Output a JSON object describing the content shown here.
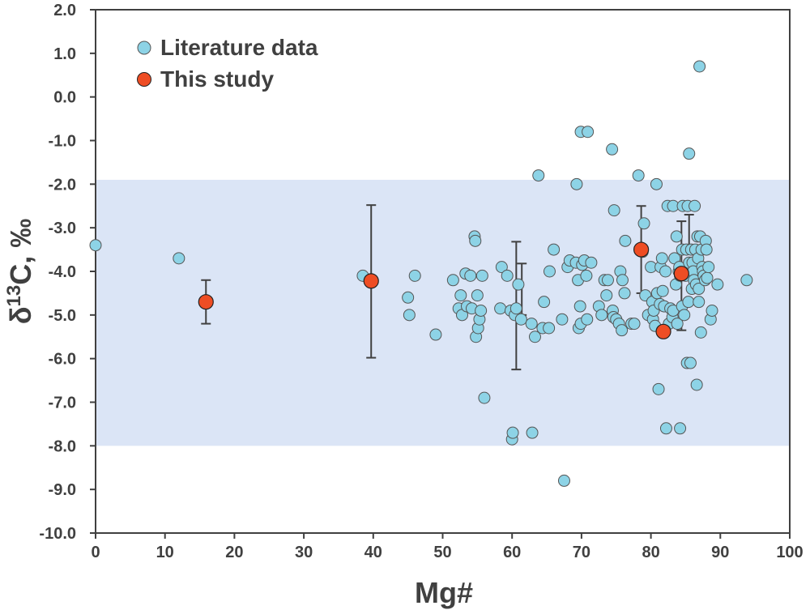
{
  "chart_data": {
    "type": "scatter",
    "xlabel": "Mg#",
    "ylabel": "δ13C, ‰",
    "ylabel_parts": {
      "symbol": "δ",
      "superscript": "13",
      "rest": "C, ‰"
    },
    "xlim": [
      0,
      100
    ],
    "ylim": [
      -10,
      2
    ],
    "x_ticks": [
      0,
      10,
      20,
      30,
      40,
      50,
      60,
      70,
      80,
      90,
      100
    ],
    "x_tick_labels": [
      "0",
      "10",
      "20",
      "30",
      "40",
      "50",
      "60",
      "70",
      "80",
      "90",
      "100"
    ],
    "y_ticks": [
      2,
      1,
      0,
      -1,
      -2,
      -3,
      -4,
      -5,
      -6,
      -7,
      -8,
      -9,
      -10
    ],
    "y_tick_labels": [
      "2.0",
      "1.0",
      "0.0",
      "-1.0",
      "-2.0",
      "-3.0",
      "-4.0",
      "-5.0",
      "-6.0",
      "-7.0",
      "-8.0",
      "-9.0",
      "-10.0"
    ],
    "grid": false,
    "legend_position": "top-left",
    "shaded_band": {
      "y_from": -8.0,
      "y_to": -1.9,
      "color": "#dbe5f6"
    },
    "colors": {
      "literature": "#8dd3e6",
      "this_study": "#ee4d24",
      "marker_edge": "#555555",
      "error_bar": "#404040",
      "frame": "#404040",
      "text": "#404040"
    },
    "series": [
      {
        "name": "Literature data",
        "color": "#8dd3e6",
        "points": [
          [
            0,
            -3.4
          ],
          [
            12,
            -3.7
          ],
          [
            38.5,
            -4.1
          ],
          [
            45,
            -4.6
          ],
          [
            45.2,
            -5.0
          ],
          [
            46,
            -4.1
          ],
          [
            49,
            -5.45
          ],
          [
            51.5,
            -4.2
          ],
          [
            52.3,
            -4.85
          ],
          [
            52.6,
            -4.55
          ],
          [
            52.8,
            -5.0
          ],
          [
            53.3,
            -4.05
          ],
          [
            53.5,
            -4.8
          ],
          [
            54,
            -4.1
          ],
          [
            54.2,
            -4.85
          ],
          [
            54.6,
            -3.2
          ],
          [
            54.7,
            -3.3
          ],
          [
            54.8,
            -5.5
          ],
          [
            55,
            -4.55
          ],
          [
            55.1,
            -5.3
          ],
          [
            55.3,
            -5.1
          ],
          [
            55.5,
            -4.9
          ],
          [
            55.7,
            -4.1
          ],
          [
            56,
            -6.9
          ],
          [
            58.3,
            -4.85
          ],
          [
            58.5,
            -3.9
          ],
          [
            59.3,
            -4.1
          ],
          [
            59.8,
            -4.9
          ],
          [
            60,
            -7.85
          ],
          [
            60.1,
            -7.7
          ],
          [
            60.4,
            -5.0
          ],
          [
            60.6,
            -4.85
          ],
          [
            60.9,
            -4.3
          ],
          [
            61.3,
            -5.1
          ],
          [
            62.8,
            -5.2
          ],
          [
            62.9,
            -7.7
          ],
          [
            63.3,
            -5.5
          ],
          [
            63.8,
            -1.8
          ],
          [
            64.4,
            -5.3
          ],
          [
            64.6,
            -4.7
          ],
          [
            65.3,
            -5.3
          ],
          [
            65.4,
            -4.0
          ],
          [
            66,
            -3.5
          ],
          [
            67.2,
            -5.1
          ],
          [
            67.5,
            -8.8
          ],
          [
            68,
            -3.9
          ],
          [
            68.3,
            -3.75
          ],
          [
            69.2,
            -3.8
          ],
          [
            69.3,
            -2.0
          ],
          [
            69.5,
            -4.2
          ],
          [
            69.6,
            -5.3
          ],
          [
            69.8,
            -4.8
          ],
          [
            69.9,
            -5.2
          ],
          [
            69.9,
            -0.8
          ],
          [
            70.1,
            -3.85
          ],
          [
            70.4,
            -3.75
          ],
          [
            70.7,
            -4.1
          ],
          [
            70.8,
            -5.1
          ],
          [
            70.9,
            -0.8
          ],
          [
            71.4,
            -3.8
          ],
          [
            72.5,
            -4.8
          ],
          [
            72.9,
            -5.0
          ],
          [
            73.3,
            -4.2
          ],
          [
            73.6,
            -4.55
          ],
          [
            73.8,
            -4.2
          ],
          [
            74.4,
            -1.2
          ],
          [
            74.5,
            -4.9
          ],
          [
            74.6,
            -5.05
          ],
          [
            74.7,
            -2.6
          ],
          [
            75,
            -5.1
          ],
          [
            75.4,
            -5.2
          ],
          [
            75.6,
            -4.0
          ],
          [
            75.8,
            -5.35
          ],
          [
            75.9,
            -4.2
          ],
          [
            76.2,
            -4.5
          ],
          [
            76.3,
            -3.3
          ],
          [
            77.2,
            -5.2
          ],
          [
            77.6,
            -5.2
          ],
          [
            78.2,
            -1.8
          ],
          [
            78.8,
            -3.55
          ],
          [
            79,
            -2.9
          ],
          [
            79.2,
            -4.55
          ],
          [
            79.6,
            -5.0
          ],
          [
            80,
            -3.9
          ],
          [
            80.2,
            -4.7
          ],
          [
            80.3,
            -5.1
          ],
          [
            80.4,
            -4.9
          ],
          [
            80.6,
            -5.25
          ],
          [
            80.8,
            -2.0
          ],
          [
            80.9,
            -4.5
          ],
          [
            81.1,
            -6.7
          ],
          [
            81.3,
            -4.75
          ],
          [
            81.4,
            -3.9
          ],
          [
            81.6,
            -3.7
          ],
          [
            81.7,
            -4.45
          ],
          [
            81.9,
            -4.8
          ],
          [
            82.1,
            -4.0
          ],
          [
            82.2,
            -7.6
          ],
          [
            82.4,
            -2.5
          ],
          [
            82.6,
            -5.2
          ],
          [
            82.8,
            -4.85
          ],
          [
            83.1,
            -5.05
          ],
          [
            83.2,
            -4.9
          ],
          [
            83.2,
            -2.5
          ],
          [
            83.4,
            -3.7
          ],
          [
            83.6,
            -4.3
          ],
          [
            83.7,
            -3.2
          ],
          [
            83.8,
            -5.2
          ],
          [
            84,
            -4.0
          ],
          [
            84.1,
            -3.9
          ],
          [
            84.2,
            -4.1
          ],
          [
            84.2,
            -7.6
          ],
          [
            84.5,
            -3.5
          ],
          [
            84.5,
            -4.8
          ],
          [
            84.6,
            -2.5
          ],
          [
            84.8,
            -5.0
          ],
          [
            85,
            -4.1
          ],
          [
            85.1,
            -3.5
          ],
          [
            85.2,
            -6.1
          ],
          [
            85.3,
            -2.5
          ],
          [
            85.4,
            -4.7
          ],
          [
            85.5,
            -3.8
          ],
          [
            85.5,
            -1.3
          ],
          [
            85.7,
            -6.1
          ],
          [
            85.8,
            -3.5
          ],
          [
            85.9,
            -4.4
          ],
          [
            86,
            -3.8
          ],
          [
            86.1,
            -4.0
          ],
          [
            86.2,
            -4.2
          ],
          [
            86.3,
            -2.5
          ],
          [
            86.4,
            -3.5
          ],
          [
            86.5,
            -4.3
          ],
          [
            86.6,
            -6.6
          ],
          [
            86.7,
            -3.2
          ],
          [
            86.8,
            -3.7
          ],
          [
            86.9,
            -4.4
          ],
          [
            86.9,
            -4.7
          ],
          [
            87,
            0.7
          ],
          [
            87.1,
            -3.2
          ],
          [
            87.2,
            -5.4
          ],
          [
            87.3,
            -3.5
          ],
          [
            87.4,
            -3.9
          ],
          [
            87.5,
            -4.0
          ],
          [
            87.6,
            -4.1
          ],
          [
            87.8,
            -4.2
          ],
          [
            87.9,
            -3.3
          ],
          [
            88,
            -3.5
          ],
          [
            88.1,
            -4.15
          ],
          [
            88.3,
            -3.9
          ],
          [
            88.6,
            -5.1
          ],
          [
            88.8,
            -4.9
          ],
          [
            89.6,
            -4.3
          ],
          [
            93.8,
            -4.2
          ]
        ]
      },
      {
        "name": "This study",
        "color": "#ee4d24",
        "points": [
          [
            15.9,
            -4.7
          ],
          [
            39.7,
            -4.22
          ],
          [
            78.6,
            -3.5
          ],
          [
            81.8,
            -5.38
          ],
          [
            84.4,
            -4.05
          ]
        ]
      }
    ],
    "error_bars": [
      {
        "x": 15.9,
        "y_low": -5.2,
        "y_high": -4.2
      },
      {
        "x": 39.7,
        "y_low": -5.98,
        "y_high": -2.48
      },
      {
        "x": 60.6,
        "y_low": -6.25,
        "y_high": -3.32
      },
      {
        "x": 61.4,
        "y_low": -5.0,
        "y_high": -3.82
      },
      {
        "x": 78.6,
        "y_low": -4.5,
        "y_high": -2.5
      },
      {
        "x": 84.4,
        "y_low": -5.35,
        "y_high": -2.85
      },
      {
        "x": 85.5,
        "y_low": -3.6,
        "y_high": -2.7
      }
    ]
  }
}
